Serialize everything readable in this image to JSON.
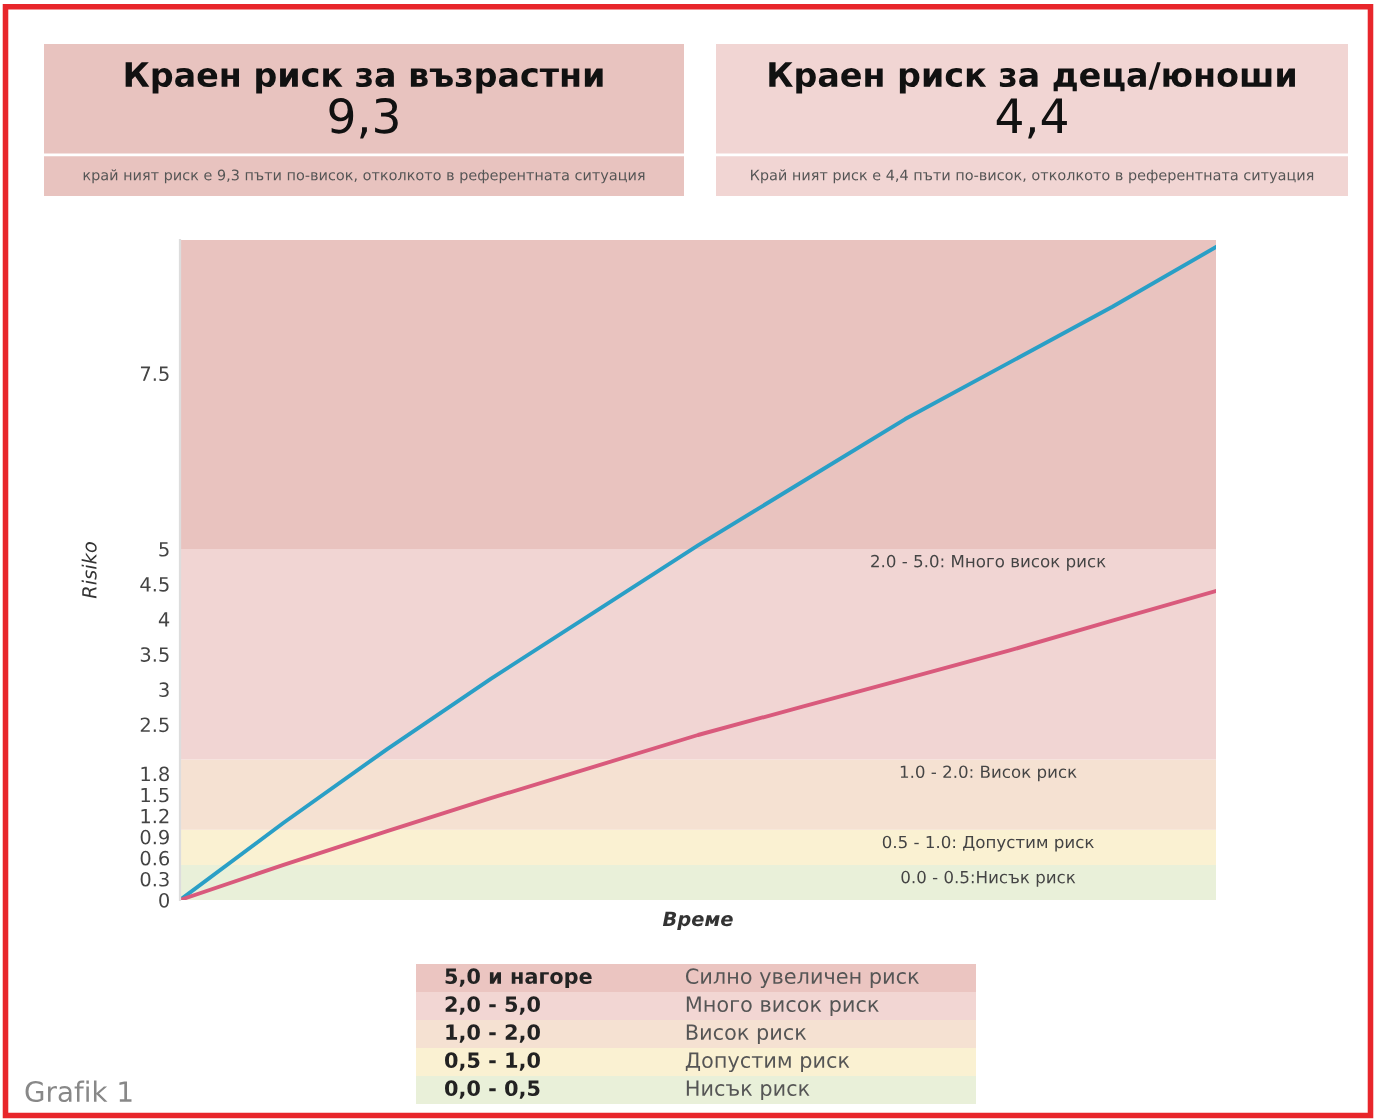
{
  "chart_data": [
    {
      "type": "other",
      "title": "Краен риск за възрастни",
      "subtitle": "9,3",
      "annotations": [
        "край ният риск е 9,3 пъти по-висок, отколкото в референтната ситуация"
      ],
      "colors": [
        "#e8c3bf"
      ]
    },
    {
      "type": "other",
      "title": "Краен риск за деца/юноши",
      "subtitle": "4,4",
      "annotations": [
        "Край ният риск е 4,4 пъти по-висок, отколкото в референтната ситуация"
      ],
      "colors": [
        "#f1d5d3"
      ]
    },
    {
      "type": "line",
      "xlabel": "Време",
      "ylabel": "Risiko",
      "categories": [
        null,
        null,
        null,
        null,
        null,
        null,
        null,
        null,
        null,
        null,
        null
      ],
      "series": [
        {
          "color": "#2a9fc6",
          "values": [
            0,
            1.1,
            2.15,
            3.15,
            4.1,
            5.05,
            5.95,
            6.85,
            7.65,
            8.45,
            9.3
          ]
        },
        {
          "color": "#d95a7c",
          "values": [
            0,
            0.5,
            0.98,
            1.45,
            1.9,
            2.35,
            2.75,
            3.15,
            3.55,
            3.98,
            4.4
          ]
        }
      ],
      "ylim": [
        0,
        9.4
      ],
      "yticks": [
        0,
        0.3,
        0.6,
        0.9,
        1.2,
        1.5,
        1.8,
        2.5,
        3,
        3.5,
        4,
        4.5,
        5,
        7.5
      ],
      "bands": [
        {
          "axis": "y",
          "from": 0,
          "to": 0.5,
          "label": "0.0 - 0.5:Нисък риск",
          "color": "#e9f0d9"
        },
        {
          "axis": "y",
          "from": 0.5,
          "to": 1,
          "label": "0.5 - 1.0: Допустим риск",
          "color": "#faf1d2"
        },
        {
          "axis": "y",
          "from": 1,
          "to": 2,
          "label": "1.0 - 2.0: Висок риск",
          "color": "#f5e1d2"
        },
        {
          "axis": "y",
          "from": 2,
          "to": 5,
          "label": "2.0 - 5.0: Много висок риск",
          "color": "#f1d5d3"
        },
        {
          "axis": "y",
          "from": 5,
          "to": 9.4,
          "color": "#e9c3bf"
        }
      ],
      "grid": false,
      "tick_labels": "y",
      "annotations": [
        "Grafik 1"
      ]
    },
    {
      "type": "other",
      "cell_labels": [
        [
          "5,0 и нагоре",
          "Силно увеличен риск"
        ],
        [
          "2,0 - 5,0",
          "Много висок риск"
        ],
        [
          "1,0 - 2,0",
          "Висок риск"
        ],
        [
          "0,5 - 1,0",
          "Допустим риск"
        ],
        [
          "0,0 - 0,5",
          "Нисък риск"
        ]
      ],
      "colors": [
        "#ebc5c1",
        "#f2d6d3",
        "#f5e1d2",
        "#faf1d2",
        "#e9f0d9"
      ]
    }
  ]
}
